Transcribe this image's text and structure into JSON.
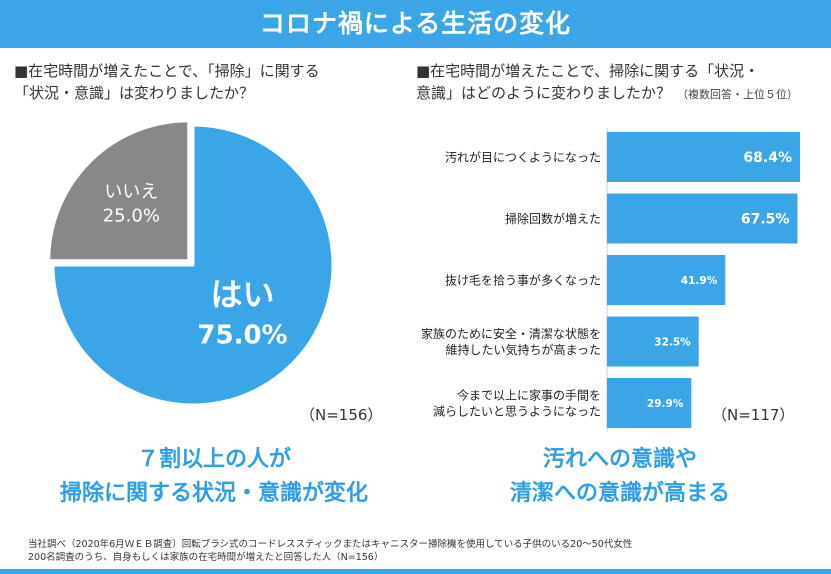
{
  "header": {
    "title": "コロナ禍による生活の変化"
  },
  "left": {
    "question_line1": "■在宅時間が増えたことで、「掃除」に関する",
    "question_line2": "「状況・意識」は変わりましたか？",
    "n_label": "（N=156）",
    "conclusion_line1": "７割以上の人が",
    "conclusion_line2": "掃除に関する状況・意識が変化"
  },
  "right": {
    "question_line1": "■在宅時間が増えたことで、掃除に関する「状況・",
    "question_line2": "意識」はどのように変わりましたか？",
    "question_note": "（複数回答・上位５位）",
    "n_label": "（N=117）",
    "conclusion_line1": "汚れへの意識や",
    "conclusion_line2": "清潔への意識が高まる"
  },
  "footnote": {
    "line1": "当社調べ（2020年6月ＷＥＢ調査）回転ブラシ式のコードレススティックまたはキャニスター掃除機を使用している子供のいる20～50代女性",
    "line2": "200名調査のうち、自身もしくは家族の在宅時間が増えたと回答した人（N=156）"
  },
  "colors": {
    "accent": "#3aa6e8",
    "pie_yes": "#3aa6e8",
    "pie_no": "#888888"
  },
  "chart_data": [
    {
      "type": "pie",
      "slices": [
        {
          "name": "はい",
          "label_value": "75.0%",
          "value": 75.0,
          "color": "#3aa6e8"
        },
        {
          "name": "いいえ",
          "label_value": "25.0%",
          "value": 25.0,
          "color": "#888888"
        }
      ]
    },
    {
      "type": "bar",
      "orientation": "horizontal",
      "categories": [
        [
          "汚れが目につくようになった"
        ],
        [
          "掃除回数が増えた"
        ],
        [
          "抜け毛を拾う事が多くなった"
        ],
        [
          "家族のために安全・清潔な状態を",
          "維持したい気持ちが高まった"
        ],
        [
          "今まで以上に家事の手間を",
          "減らしたいと思うようになった"
        ]
      ],
      "values": [
        68.4,
        67.5,
        41.9,
        32.5,
        29.9
      ],
      "value_labels": [
        "68.4%",
        "67.5%",
        "41.9%",
        "32.5%",
        "29.9%"
      ],
      "color": "#3aa6e8"
    }
  ]
}
